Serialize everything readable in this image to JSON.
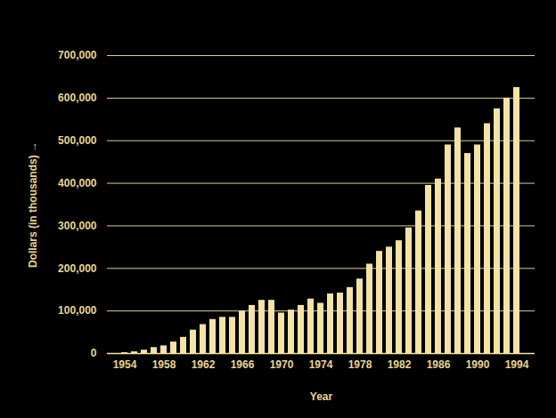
{
  "chart_data": {
    "type": "bar",
    "x": [
      1954,
      1955,
      1956,
      1957,
      1958,
      1959,
      1960,
      1961,
      1962,
      1963,
      1964,
      1965,
      1966,
      1967,
      1968,
      1969,
      1970,
      1971,
      1972,
      1973,
      1974,
      1975,
      1976,
      1977,
      1978,
      1979,
      1980,
      1981,
      1982,
      1983,
      1984,
      1985,
      1986,
      1987,
      1988,
      1989,
      1990,
      1991,
      1992,
      1993,
      1994
    ],
    "values": [
      2000,
      4000,
      8000,
      14000,
      18000,
      27000,
      38000,
      55000,
      68000,
      80000,
      85000,
      85000,
      100000,
      113000,
      125000,
      125000,
      95000,
      102000,
      113000,
      128000,
      118000,
      140000,
      142000,
      155000,
      175000,
      210000,
      240000,
      250000,
      265000,
      295000,
      335000,
      395000,
      410000,
      490000,
      530000,
      470000,
      490000,
      540000,
      575000,
      600000,
      625000
    ],
    "color": "#f3e3a6",
    "x_label": "Year",
    "y_label": "Dollars (in thousands)",
    "xticks": [
      1954,
      1958,
      1962,
      1966,
      1970,
      1974,
      1978,
      1982,
      1986,
      1990,
      1994
    ],
    "ylim": [
      0,
      700000
    ],
    "yticks": [
      0,
      {
        "value": 100000,
        "label": "100,000"
      },
      {
        "value": 200000,
        "label": "200,000"
      },
      {
        "value": 300000,
        "label": "300,000"
      },
      {
        "value": 400000,
        "label": "400,000"
      },
      {
        "value": 500000,
        "label": "500,000"
      },
      {
        "value": 600000,
        "label": "600,000"
      },
      {
        "value": 700000,
        "label": "700,000"
      }
    ],
    "grid": true
  }
}
